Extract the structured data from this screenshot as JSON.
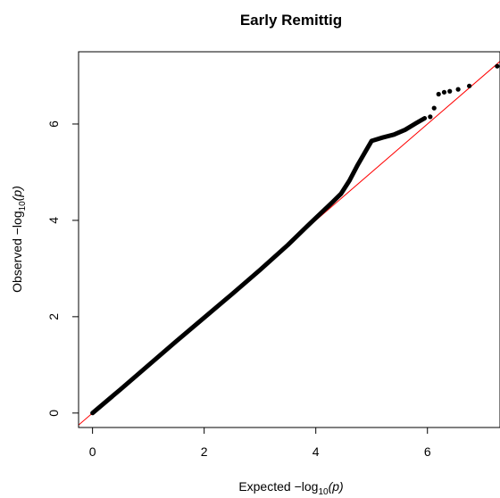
{
  "chart_data": {
    "type": "scatter",
    "title": "Early Remittig",
    "xlabel": {
      "prefix": "Expected  −log",
      "sub": "10",
      "suffix": "(p)"
    },
    "ylabel": {
      "prefix": "Observed  −log",
      "sub": "10",
      "suffix": "(p)"
    },
    "xlim": [
      -0.25,
      7.3
    ],
    "ylim": [
      -0.3,
      7.5
    ],
    "x_ticks": [
      "0",
      "2",
      "4",
      "6"
    ],
    "y_ticks": [
      "0",
      "2",
      "4",
      "6"
    ],
    "grid": false,
    "legend": "none",
    "reference_line": {
      "from": [
        -0.25,
        -0.25
      ],
      "to": [
        7.3,
        7.3
      ],
      "color": "#ff0000"
    },
    "point_color": "#000000",
    "curve": [
      [
        0.0,
        0.0
      ],
      [
        0.5,
        0.49
      ],
      [
        1.0,
        0.99
      ],
      [
        1.5,
        1.49
      ],
      [
        2.0,
        1.98
      ],
      [
        2.5,
        2.47
      ],
      [
        3.0,
        2.97
      ],
      [
        3.5,
        3.49
      ],
      [
        3.9,
        3.94
      ],
      [
        4.1,
        4.16
      ],
      [
        4.3,
        4.38
      ],
      [
        4.45,
        4.55
      ],
      [
        4.6,
        4.82
      ],
      [
        4.75,
        5.15
      ],
      [
        4.9,
        5.45
      ],
      [
        5.0,
        5.65
      ],
      [
        5.2,
        5.72
      ],
      [
        5.4,
        5.78
      ],
      [
        5.6,
        5.88
      ],
      [
        5.8,
        6.02
      ],
      [
        5.95,
        6.12
      ]
    ],
    "points": [
      [
        6.05,
        6.15
      ],
      [
        6.12,
        6.33
      ],
      [
        6.2,
        6.62
      ],
      [
        6.3,
        6.66
      ],
      [
        6.4,
        6.68
      ],
      [
        6.55,
        6.72
      ],
      [
        6.75,
        6.79
      ],
      [
        7.25,
        7.2
      ]
    ]
  }
}
